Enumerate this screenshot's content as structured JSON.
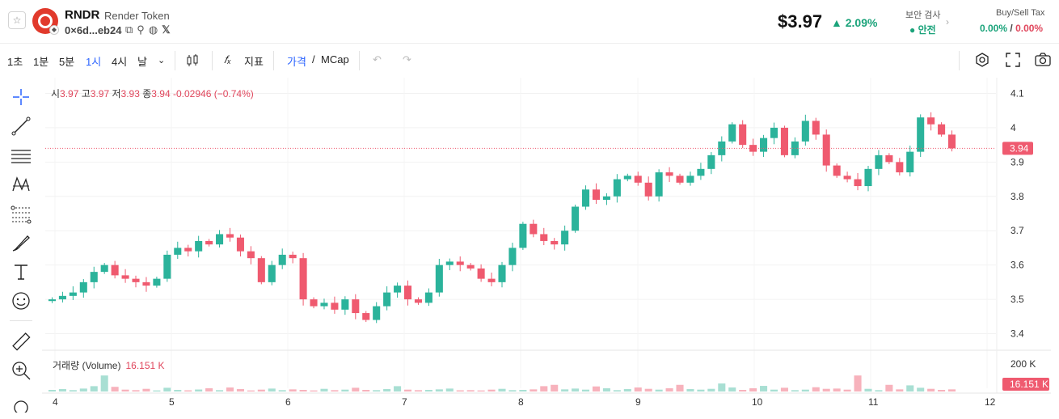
{
  "header": {
    "symbol": "RNDR",
    "token_name": "Render Token",
    "address": "0×6d...eb24",
    "price": "$3.97",
    "change": "2.09%",
    "security_label": "보안 검사",
    "security_value": "안전",
    "tax_label": "Buy/Sell Tax",
    "buy_tax": "0.00%",
    "sell_tax": "0.00%",
    "tax_sep": "/"
  },
  "toolbar": {
    "intervals": [
      "1초",
      "1분",
      "5분",
      "1시",
      "4시",
      "날"
    ],
    "active_interval": "1시",
    "indicators_label": "지표",
    "price_label": "가격",
    "mcap_label": "MCap",
    "slash": "/"
  },
  "legend": {
    "open_label": "시",
    "open": "3.97",
    "high_label": "고",
    "high": "3.97",
    "low_label": "저",
    "low": "3.93",
    "close_label": "종",
    "close": "3.94",
    "change": "-0.02946 (−0.74%)"
  },
  "volume_legend": {
    "label": "거래량 (Volume)",
    "value": "16.151 K"
  },
  "chart_data": {
    "type": "candlestick",
    "price_ticks": [
      "4.1",
      "4",
      "3.9",
      "3.8",
      "3.7",
      "3.6",
      "3.5",
      "3.4"
    ],
    "price_tick_values": [
      4.1,
      4.0,
      3.9,
      3.8,
      3.7,
      3.6,
      3.5,
      3.4
    ],
    "ylim": [
      3.38,
      4.12
    ],
    "x_ticks": [
      "4",
      "5",
      "6",
      "7",
      "8",
      "9",
      "10",
      "11",
      "12"
    ],
    "current_price_label": "3.94",
    "current_price": 3.94,
    "volume_tick": "200 K",
    "volume_tick_value": 200,
    "volume_current_label": "16.151 K",
    "close_path": [
      3.5,
      3.51,
      3.52,
      3.55,
      3.58,
      3.6,
      3.57,
      3.56,
      3.55,
      3.54,
      3.56,
      3.63,
      3.65,
      3.64,
      3.67,
      3.66,
      3.69,
      3.68,
      3.64,
      3.62,
      3.55,
      3.6,
      3.63,
      3.62,
      3.5,
      3.48,
      3.49,
      3.47,
      3.5,
      3.46,
      3.44,
      3.48,
      3.52,
      3.54,
      3.5,
      3.49,
      3.52,
      3.6,
      3.61,
      3.6,
      3.59,
      3.56,
      3.55,
      3.6,
      3.65,
      3.72,
      3.69,
      3.67,
      3.66,
      3.7,
      3.77,
      3.82,
      3.79,
      3.8,
      3.85,
      3.86,
      3.84,
      3.8,
      3.87,
      3.86,
      3.84,
      3.86,
      3.88,
      3.92,
      3.96,
      4.01,
      3.95,
      3.93,
      3.97,
      4.0,
      3.92,
      3.96,
      4.02,
      3.98,
      3.89,
      3.86,
      3.85,
      3.83,
      3.88,
      3.92,
      3.9,
      3.87,
      3.93,
      4.03,
      4.01,
      3.98,
      3.94
    ],
    "volume_bars": [
      12,
      18,
      10,
      22,
      40,
      120,
      35,
      14,
      10,
      20,
      8,
      28,
      12,
      9,
      15,
      24,
      10,
      30,
      18,
      8,
      14,
      22,
      10,
      16,
      12,
      8,
      20,
      10,
      14,
      28,
      12,
      10,
      18,
      40,
      14,
      10,
      12,
      16,
      22,
      9,
      10,
      8,
      14,
      20,
      10,
      12,
      16,
      40,
      50,
      16,
      22,
      14,
      38,
      24,
      10,
      18,
      30,
      20,
      14,
      24,
      50,
      18,
      14,
      20,
      60,
      30,
      12,
      24,
      42,
      14,
      28,
      10,
      14,
      32,
      20,
      22,
      14,
      120,
      20,
      10,
      50,
      16,
      46,
      28,
      20,
      12,
      16
    ],
    "n_candles": 87
  }
}
